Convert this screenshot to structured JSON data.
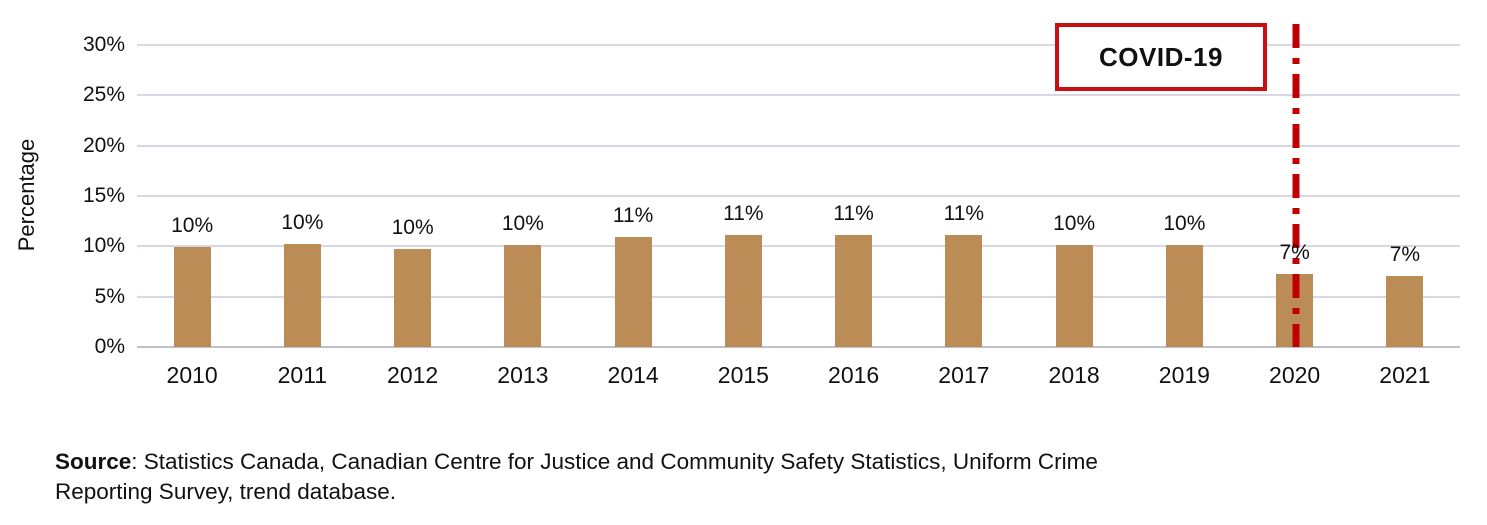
{
  "chart_data": {
    "type": "bar",
    "title": "",
    "xlabel": "",
    "ylabel": "Percentage",
    "categories": [
      "2010",
      "2011",
      "2012",
      "2013",
      "2014",
      "2015",
      "2016",
      "2017",
      "2018",
      "2019",
      "2020",
      "2021"
    ],
    "series": [
      {
        "name": "Percentage",
        "values": [
          10,
          10,
          10,
          10,
          11,
          11,
          11,
          11,
          10,
          10,
          7,
          7
        ]
      }
    ],
    "data_labels": [
      "10%",
      "10%",
      "10%",
      "10%",
      "11%",
      "11%",
      "11%",
      "11%",
      "10%",
      "10%",
      "7%",
      "7%"
    ],
    "bar_display_heights": [
      9.9,
      10.2,
      9.7,
      10.1,
      10.9,
      11.1,
      11.1,
      11.1,
      10.1,
      10.1,
      7.3,
      7.1
    ],
    "ylim": [
      0,
      30
    ],
    "yticks": [
      0,
      5,
      10,
      15,
      20,
      25,
      30
    ],
    "ytick_labels": [
      "0%",
      "5%",
      "10%",
      "15%",
      "20%",
      "25%",
      "30%"
    ],
    "grid": true,
    "legend_position": "none",
    "bar_color": "#bc8c56",
    "gridline_color": "#d9d6e6",
    "annotation": {
      "label": "COVID-19",
      "line_at_category": "2020",
      "line_color": "#c00000",
      "line_style": "dash-dot",
      "box_border_color": "#c81010"
    }
  },
  "annotation_box": {
    "label": "COVID-19"
  },
  "source_note": {
    "bold": "Source",
    "line1": ": Statistics Canada, Canadian Centre for Justice and Community Safety Statistics, Uniform Crime",
    "line2": "Reporting Survey, trend database."
  }
}
